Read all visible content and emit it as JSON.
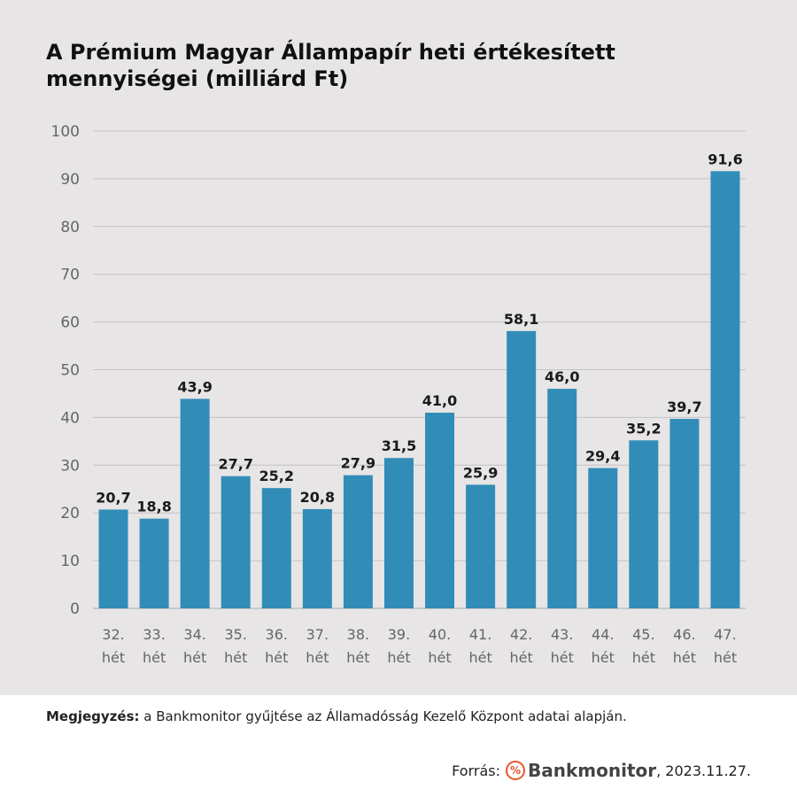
{
  "chart_data": {
    "type": "bar",
    "title": "A Prémium Magyar Állampapír heti értékesített mennyiségei (milliárd Ft)",
    "categories": [
      "32. hét",
      "33. hét",
      "34. hét",
      "35. hét",
      "36. hét",
      "37. hét",
      "38. hét",
      "39. hét",
      "40. hét",
      "41. hét",
      "42. hét",
      "43. hét",
      "44. hét",
      "45. hét",
      "46. hét",
      "47. hét"
    ],
    "values": [
      20.7,
      18.8,
      43.9,
      27.7,
      25.2,
      20.8,
      27.9,
      31.5,
      41.0,
      25.9,
      58.1,
      46.0,
      29.4,
      35.2,
      39.7,
      91.6
    ],
    "data_labels": [
      "20,7",
      "18,8",
      "43,9",
      "27,7",
      "25,2",
      "20,8",
      "27,9",
      "31,5",
      "41,0",
      "25,9",
      "58,1",
      "46,0",
      "29,4",
      "35,2",
      "39,7",
      "91,6"
    ],
    "yticks": [
      0,
      10,
      20,
      30,
      40,
      50,
      60,
      70,
      80,
      90,
      100
    ],
    "ylim": [
      0,
      100
    ],
    "grid": true,
    "bar_color": "#318db7",
    "xlabel": "",
    "ylabel": ""
  },
  "note": {
    "label": "Megjegyzés:",
    "text": " a Bankmonitor gyűjtése az Államadósság Kezelő Központ adatai alapján."
  },
  "source": {
    "label": "Forrás:",
    "logo": "Bankmonitor",
    "logo_icon": "percent-icon",
    "date": ", 2023.11.27.",
    "accent": "#e8572c"
  }
}
